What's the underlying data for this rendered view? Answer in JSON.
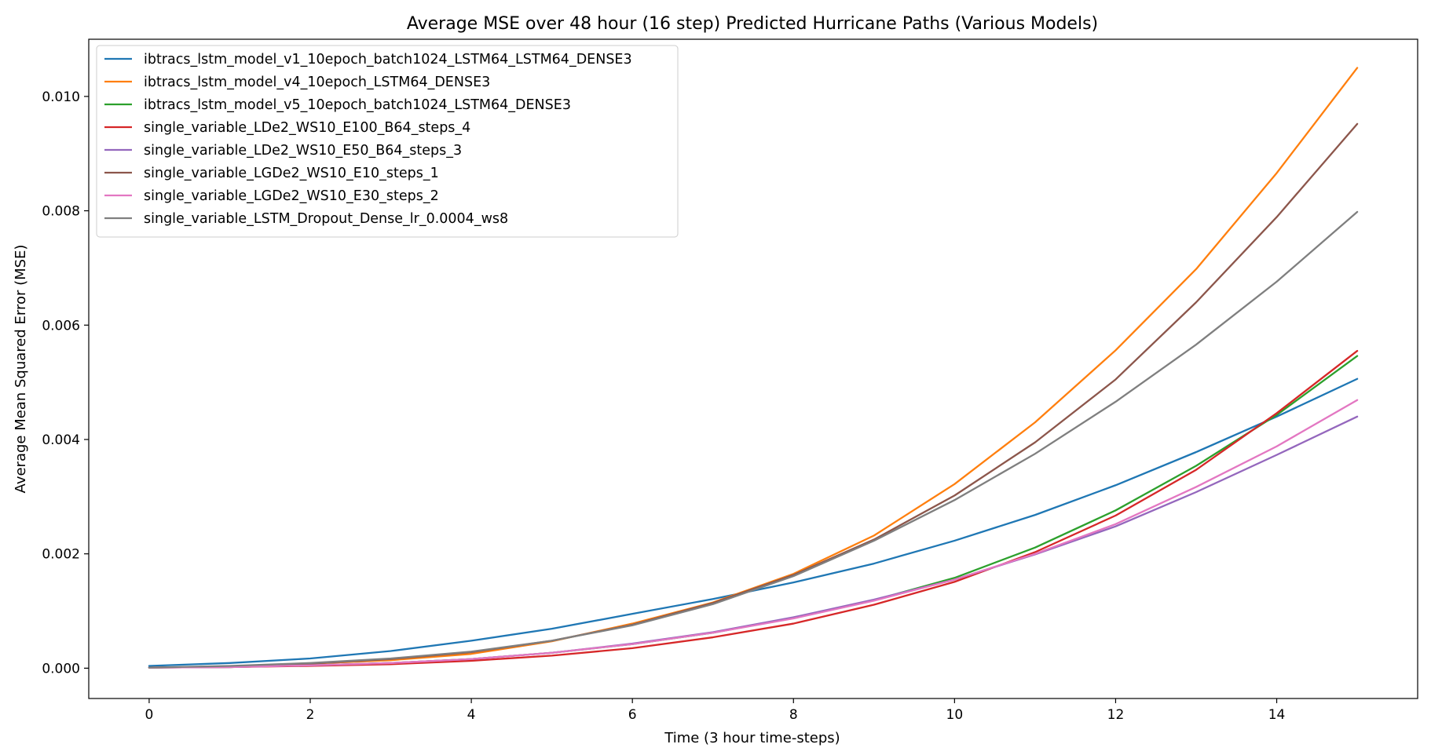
{
  "chart_data": {
    "type": "line",
    "title": "Average MSE over 48 hour (16 step) Predicted Hurricane Paths (Various Models)",
    "xlabel": "Time (3 hour time-steps)",
    "ylabel": "Average Mean Squared Error (MSE)",
    "xlim": [
      -0.75,
      15.75
    ],
    "ylim": [
      -0.00053,
      0.011
    ],
    "xticks": [
      0,
      2,
      4,
      6,
      8,
      10,
      12,
      14
    ],
    "xtick_labels": [
      "0",
      "2",
      "4",
      "6",
      "8",
      "10",
      "12",
      "14"
    ],
    "yticks": [
      0.0,
      0.002,
      0.004,
      0.006,
      0.008,
      0.01
    ],
    "ytick_labels": [
      "0.000",
      "0.002",
      "0.004",
      "0.006",
      "0.008",
      "0.010"
    ],
    "grid": false,
    "legend_position": "top-left",
    "x": [
      0,
      1,
      2,
      3,
      4,
      5,
      6,
      7,
      8,
      9,
      10,
      11,
      12,
      13,
      14,
      15
    ],
    "series": [
      {
        "name": "ibtracs_lstm_model_v1_10epoch_batch1024_LSTM64_LSTM64_DENSE3",
        "color": "#1f77b4",
        "values": [
          4e-05,
          9e-05,
          0.00017,
          0.0003,
          0.00048,
          0.00069,
          0.00095,
          0.00121,
          0.0015,
          0.00183,
          0.00223,
          0.00268,
          0.0032,
          0.00378,
          0.0044,
          0.00506
        ]
      },
      {
        "name": "ibtracs_lstm_model_v4_10epoch_LSTM64_DENSE3",
        "color": "#ff7f0e",
        "values": [
          1e-05,
          3e-05,
          8e-05,
          0.00014,
          0.00025,
          0.00047,
          0.00078,
          0.00115,
          0.00165,
          0.00232,
          0.00322,
          0.0043,
          0.00556,
          0.00698,
          0.00866,
          0.0105
        ]
      },
      {
        "name": "ibtracs_lstm_model_v5_10epoch_batch1024_LSTM64_DENSE3",
        "color": "#2ca02c",
        "values": [
          1e-05,
          2e-05,
          5e-05,
          9e-05,
          0.00016,
          0.00027,
          0.00042,
          0.00062,
          0.00088,
          0.00119,
          0.00158,
          0.00211,
          0.00276,
          0.00354,
          0.00443,
          0.00546
        ]
      },
      {
        "name": "single_variable_LDe2_WS10_E100_B64_steps_4",
        "color": "#d62728",
        "values": [
          1e-05,
          2e-05,
          4e-05,
          7e-05,
          0.00013,
          0.00022,
          0.00035,
          0.00054,
          0.00078,
          0.00111,
          0.00151,
          0.00203,
          0.00267,
          0.00347,
          0.00446,
          0.00555
        ]
      },
      {
        "name": "single_variable_LDe2_WS10_E50_B64_steps_3",
        "color": "#9467bd",
        "values": [
          1e-05,
          2e-05,
          5e-05,
          9e-05,
          0.00016,
          0.00027,
          0.00043,
          0.00063,
          0.00089,
          0.0012,
          0.00155,
          0.00199,
          0.00248,
          0.00308,
          0.00373,
          0.0044
        ]
      },
      {
        "name": "single_variable_LGDe2_WS10_E10_steps_1",
        "color": "#8c564b",
        "values": [
          1e-05,
          3e-05,
          8e-05,
          0.00016,
          0.00028,
          0.00048,
          0.00076,
          0.00114,
          0.00163,
          0.00225,
          0.00302,
          0.00395,
          0.00505,
          0.0064,
          0.00789,
          0.00952
        ]
      },
      {
        "name": "single_variable_LGDe2_WS10_E30_steps_2",
        "color": "#e377c2",
        "values": [
          1e-05,
          2e-05,
          5e-05,
          9e-05,
          0.00016,
          0.00027,
          0.00042,
          0.00062,
          0.00087,
          0.00118,
          0.00155,
          0.002,
          0.00252,
          0.00317,
          0.00388,
          0.00469
        ]
      },
      {
        "name": "single_variable_LSTM_Dropout_Dense_lr_0.0004_ws8",
        "color": "#7f7f7f",
        "values": [
          1e-05,
          4e-05,
          9e-05,
          0.00017,
          0.00029,
          0.00048,
          0.00075,
          0.00112,
          0.00161,
          0.00223,
          0.00294,
          0.00375,
          0.00466,
          0.00566,
          0.00676,
          0.00798
        ]
      }
    ]
  }
}
